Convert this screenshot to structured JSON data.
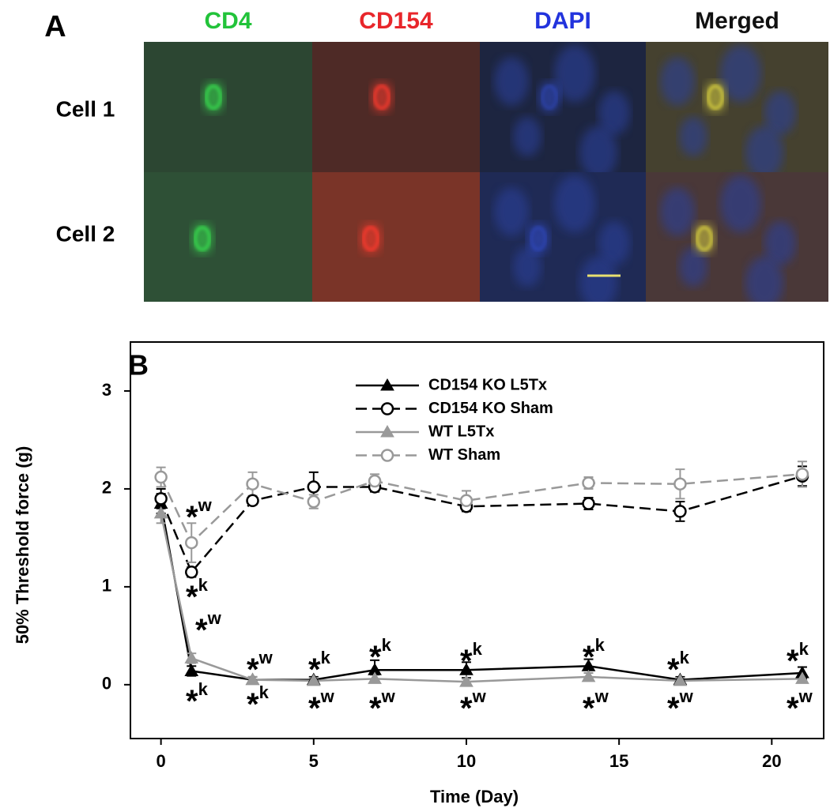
{
  "panel_a": {
    "label": "A",
    "columns": [
      {
        "text": "CD4",
        "color": "#22c33a"
      },
      {
        "text": "CD154",
        "color": "#e8262b"
      },
      {
        "text": "DAPI",
        "color": "#2233dd"
      },
      {
        "text": "Merged",
        "color": "#111111"
      }
    ],
    "rows": [
      "Cell 1",
      "Cell 2"
    ]
  },
  "chart_data": {
    "type": "line",
    "panel_label": "B",
    "x_label": "Time (Day)",
    "y_label": "50% Threshold force (g)",
    "x": [
      0,
      1,
      3,
      5,
      7,
      10,
      14,
      17,
      21
    ],
    "xlim": [
      -1,
      21.7
    ],
    "xticks": [
      0,
      5,
      10,
      15,
      20
    ],
    "ylim": [
      -0.55,
      3.5
    ],
    "yticks": [
      0,
      1,
      2,
      3
    ],
    "legend": "top-center",
    "series": [
      {
        "name": "CD154 KO L5Tx",
        "color": "#000000",
        "dashed": false,
        "marker": "triangle",
        "values": [
          1.85,
          0.14,
          0.05,
          0.05,
          0.15,
          0.15,
          0.19,
          0.05,
          0.12
        ],
        "errors": [
          0.1,
          0.05,
          0.03,
          0.03,
          0.1,
          0.08,
          0.07,
          0.03,
          0.06
        ]
      },
      {
        "name": "CD154 KO Sham",
        "color": "#000000",
        "dashed": true,
        "marker": "circle",
        "values": [
          1.9,
          1.15,
          1.88,
          2.02,
          2.02,
          1.82,
          1.85,
          1.77,
          2.13
        ],
        "errors": [
          0.1,
          0.05,
          0.04,
          0.15,
          0.05,
          0.05,
          0.06,
          0.1,
          0.1
        ]
      },
      {
        "name": "WT L5Tx",
        "color": "#999999",
        "dashed": false,
        "marker": "triangle",
        "values": [
          1.75,
          0.27,
          0.05,
          0.04,
          0.06,
          0.03,
          0.08,
          0.04,
          0.06
        ],
        "errors": [
          0.1,
          0.05,
          0.03,
          0.03,
          0.04,
          0.03,
          0.04,
          0.03,
          0.03
        ]
      },
      {
        "name": "WT Sham",
        "color": "#999999",
        "dashed": true,
        "marker": "circle",
        "values": [
          2.12,
          1.45,
          2.05,
          1.87,
          2.08,
          1.88,
          2.06,
          2.05,
          2.15
        ],
        "errors": [
          0.1,
          0.2,
          0.12,
          0.07,
          0.07,
          0.1,
          0.06,
          0.15,
          0.13
        ]
      }
    ],
    "annotations": [
      {
        "text": "*",
        "sup": "w"
      },
      {
        "text": "*",
        "sup": "k"
      },
      {
        "text": "*",
        "sup": "w"
      },
      {
        "text": "*",
        "sup": "k"
      },
      {
        "text": "*",
        "sup": "w"
      },
      {
        "text": "*",
        "sup": "k"
      },
      {
        "text": "*",
        "sup": "k"
      },
      {
        "text": "*",
        "sup": "w"
      },
      {
        "text": "*",
        "sup": "k"
      },
      {
        "text": "*",
        "sup": "w"
      },
      {
        "text": "*",
        "sup": "k"
      },
      {
        "text": "*",
        "sup": "w"
      },
      {
        "text": "*",
        "sup": "k"
      },
      {
        "text": "*",
        "sup": "w"
      },
      {
        "text": "*",
        "sup": "k"
      },
      {
        "text": "*",
        "sup": "w"
      },
      {
        "text": "*",
        "sup": "k"
      },
      {
        "text": "*",
        "sup": "w"
      }
    ]
  }
}
